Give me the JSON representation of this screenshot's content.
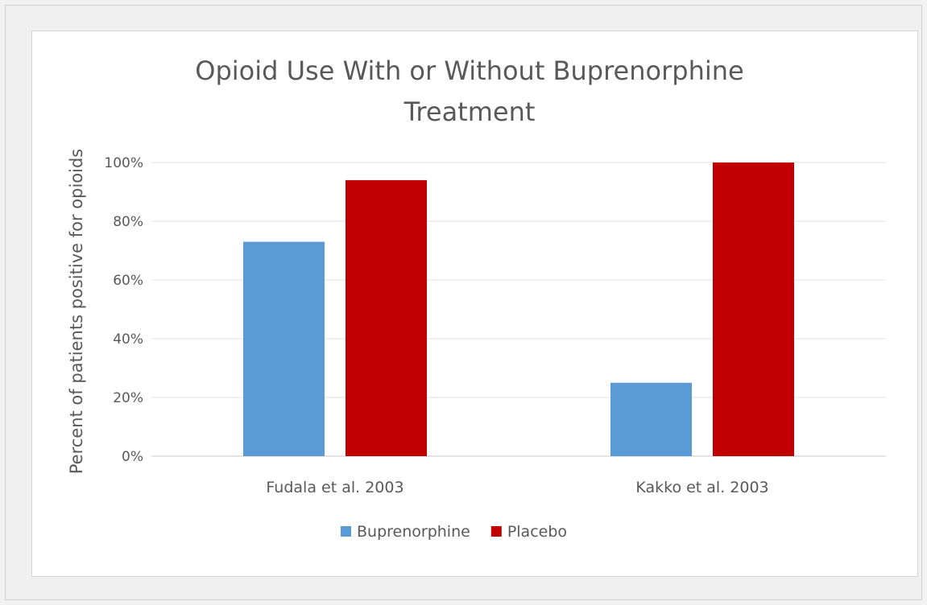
{
  "chart_data": {
    "type": "bar",
    "title_lines": [
      "Opioid Use With or Without Buprenorphine",
      "Treatment"
    ],
    "xlabel": "",
    "ylabel": "Percent of patients positive for opioids",
    "categories": [
      "Fudala et al. 2003",
      "Kakko et al. 2003"
    ],
    "series": [
      {
        "name": "Buprenorphine",
        "color": "#5b9bd5",
        "values": [
          73,
          25
        ]
      },
      {
        "name": "Placebo",
        "color": "#c00000",
        "values": [
          94,
          100
        ]
      }
    ],
    "ylim": [
      0,
      100
    ],
    "yticks": [
      0,
      20,
      40,
      60,
      80,
      100
    ],
    "ytick_labels": [
      "0%",
      "20%",
      "40%",
      "60%",
      "80%",
      "100%"
    ],
    "grid": true,
    "legend_position": "bottom"
  }
}
